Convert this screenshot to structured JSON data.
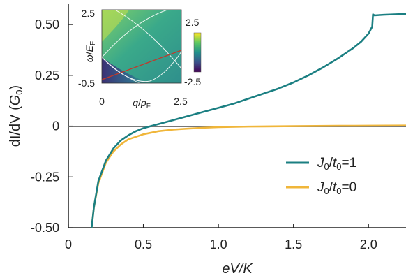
{
  "chart_data": [
    {
      "type": "line",
      "xlabel": "eV/K",
      "ylabel": "dI/dV (G0)",
      "xlim": [
        0,
        2.25
      ],
      "ylim": [
        -0.5,
        0.6
      ],
      "x_ticks": [
        "0",
        "0.5",
        "1.0",
        "1.5",
        "2.0"
      ],
      "y_ticks": [
        "-0.50",
        "-0.25",
        "0",
        "0.25",
        "0.50"
      ],
      "zero_line": true,
      "legend_position": "bottom-right",
      "colors": {
        "teal": "#1b7f82",
        "yellow": "#f0b63a"
      },
      "series": [
        {
          "name": "J0/t0=1",
          "color": "#1b7f82",
          "x": [
            0.155,
            0.17,
            0.2,
            0.25,
            0.3,
            0.35,
            0.4,
            0.45,
            0.5,
            0.55,
            0.6,
            0.7,
            0.8,
            0.9,
            1.0,
            1.1,
            1.2,
            1.3,
            1.4,
            1.5,
            1.6,
            1.7,
            1.8,
            1.9,
            1.95,
            2.0,
            2.025,
            2.03,
            2.04,
            2.1,
            2.2,
            2.25
          ],
          "y": [
            -0.5,
            -0.4,
            -0.27,
            -0.17,
            -0.11,
            -0.07,
            -0.045,
            -0.025,
            -0.01,
            0.0,
            0.01,
            0.03,
            0.05,
            0.07,
            0.09,
            0.11,
            0.135,
            0.16,
            0.185,
            0.215,
            0.25,
            0.29,
            0.335,
            0.385,
            0.415,
            0.455,
            0.49,
            0.55,
            0.545,
            0.548,
            0.551,
            0.552
          ]
        },
        {
          "name": "J0/t0=0",
          "color": "#f0b63a",
          "x": [
            0.155,
            0.17,
            0.2,
            0.25,
            0.3,
            0.35,
            0.4,
            0.5,
            0.6,
            0.7,
            0.8,
            0.9,
            1.0,
            1.2,
            1.5,
            1.8,
            2.0,
            2.25
          ],
          "y": [
            -0.5,
            -0.4,
            -0.28,
            -0.18,
            -0.125,
            -0.09,
            -0.065,
            -0.04,
            -0.025,
            -0.017,
            -0.012,
            -0.008,
            -0.005,
            -0.002,
            0.0,
            0.0015,
            0.002,
            0.003
          ]
        }
      ],
      "legend": [
        {
          "prefix": "J",
          "sub": "0",
          "slash": "/t",
          "sub2": "0",
          "value": "=1",
          "color": "#1b7f82"
        },
        {
          "prefix": "J",
          "sub": "0",
          "slash": "/t",
          "sub2": "0",
          "value": "=0",
          "color": "#f0b63a"
        }
      ]
    },
    {
      "type": "heatmap",
      "xlabel": "q/pF",
      "ylabel": "ω/EF",
      "xlim": [
        0,
        2.5
      ],
      "ylim": [
        -0.5,
        2.5
      ],
      "x_ticks": [
        "0",
        "2.5"
      ],
      "y_ticks": [
        "-0.5",
        "2.5"
      ],
      "colorbar": {
        "min": -2.5,
        "max": 2.5,
        "labels": [
          "2.5",
          "-2.5"
        ],
        "colormap": "viridis"
      },
      "overlay_line": {
        "color": "#c0392b",
        "x": [
          0,
          2.5
        ],
        "y": [
          -0.15,
          0.95
        ]
      }
    }
  ]
}
